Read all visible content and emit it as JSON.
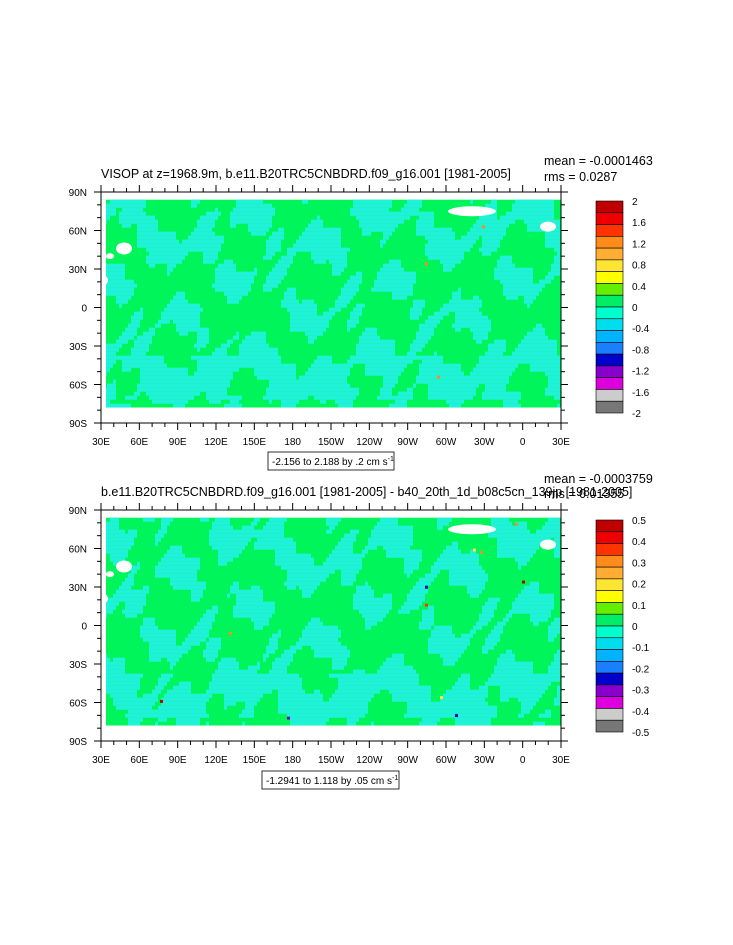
{
  "chart_data": [
    {
      "type": "heatmap",
      "title": "VISOP at z=1968.9m, b.e11.B20TRC5CNBDRD.f09_g16.001 [1981-2005]",
      "stats": [
        "mean = -0.0001463",
        "rms = 0.0287"
      ],
      "x_ticks": [
        "30E",
        "60E",
        "90E",
        "120E",
        "150E",
        "180",
        "150W",
        "120W",
        "90W",
        "60W",
        "30W",
        "0",
        "30E"
      ],
      "y_ticks": [
        "90N",
        "60N",
        "30N",
        "0",
        "30S",
        "60S",
        "90S"
      ],
      "range_label": "-2.156 to 2.188 by .2 cm s",
      "range_sup": "-1",
      "colorbar_labels": [
        "2",
        "1.6",
        "1.2",
        "0.8",
        "0.4",
        "0",
        "-0.4",
        "-0.8",
        "-1.2",
        "-1.6",
        "-2"
      ]
    },
    {
      "type": "heatmap",
      "title": "b.e11.B20TRC5CNBDRD.f09_g16.001 [1981-2005] - b40_20th_1d_b08c5cn_139jp [1981-2005]",
      "stats": [
        "mean = -0.0003759",
        "rms = 0.01355"
      ],
      "x_ticks": [
        "30E",
        "60E",
        "90E",
        "120E",
        "150E",
        "180",
        "150W",
        "120W",
        "90W",
        "60W",
        "30W",
        "0",
        "30E"
      ],
      "y_ticks": [
        "90N",
        "60N",
        "30N",
        "0",
        "30S",
        "60S",
        "90S"
      ],
      "range_label": "-1.2941 to 1.118 by .05 cm s",
      "range_sup": "-1",
      "colorbar_labels": [
        "0.5",
        "0.4",
        "0.3",
        "0.2",
        "0.1",
        "0",
        "-0.1",
        "-0.2",
        "-0.3",
        "-0.4",
        "-0.5"
      ]
    }
  ],
  "colors": {
    "palette": [
      "#c00000",
      "#ee0000",
      "#ff3300",
      "#ff8c1a",
      "#ffad33",
      "#ffe533",
      "#ffff00",
      "#66ee00",
      "#00ee66",
      "#00ffcc",
      "#00ddee",
      "#00b3ff",
      "#1a80ff",
      "#0000cc",
      "#8800cc",
      "#dd00dd",
      "#cccccc",
      "#777777"
    ],
    "ocean_green": "#00f55a",
    "ocean_cyan": "#1ff2d8"
  }
}
